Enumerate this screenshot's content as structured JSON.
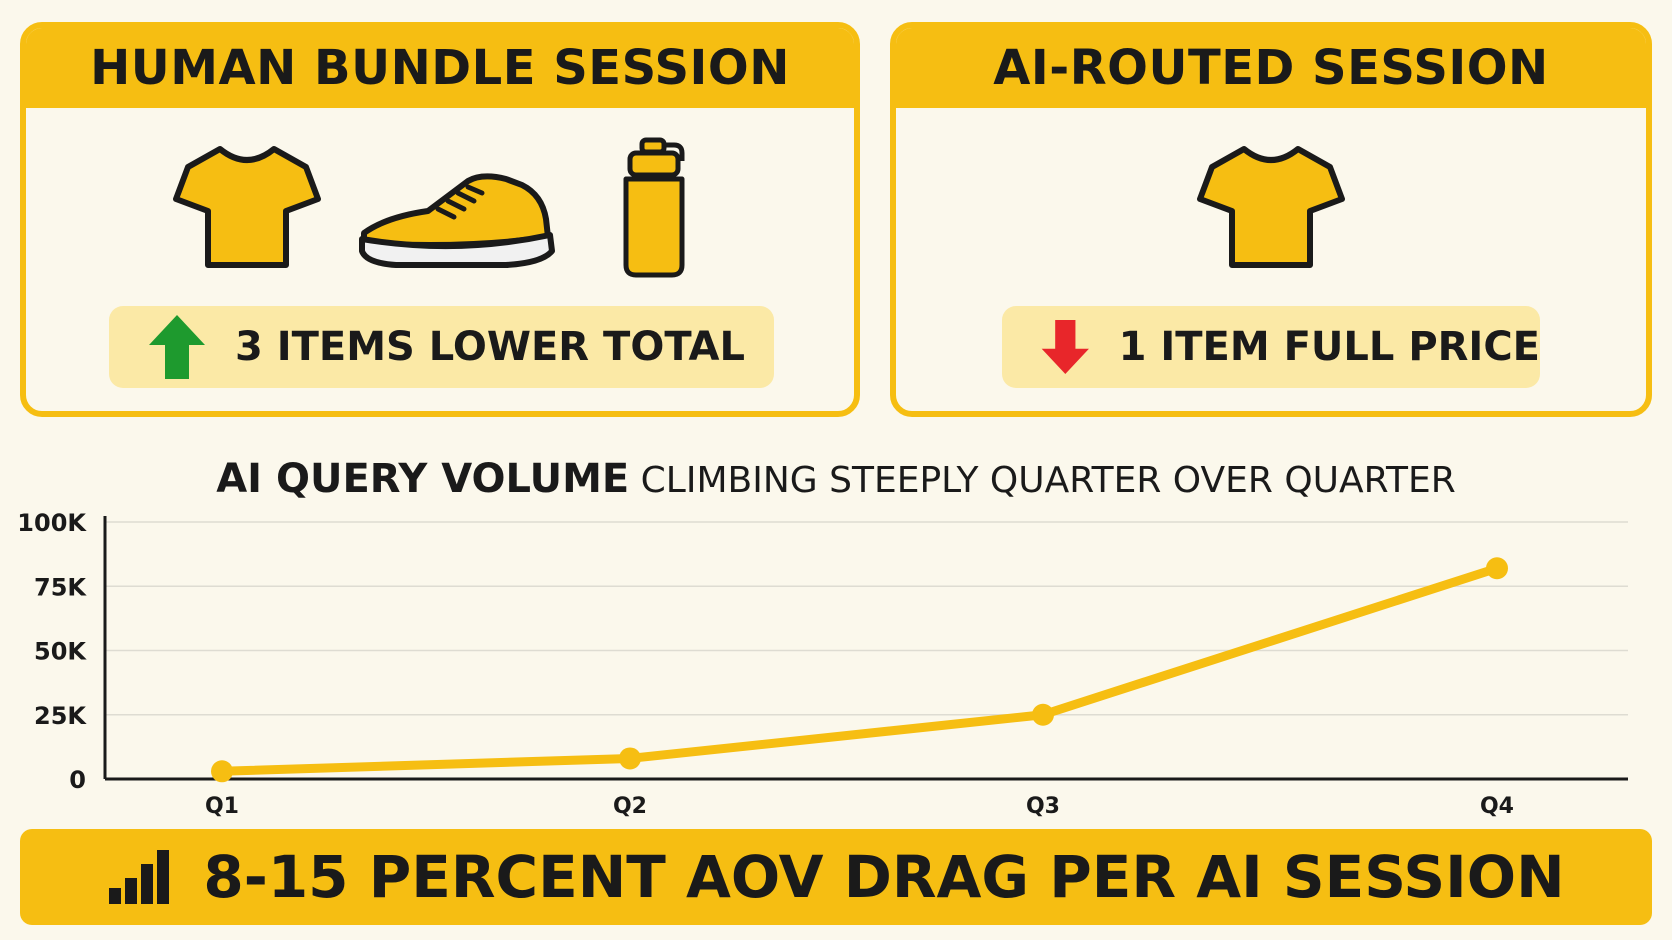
{
  "panels": {
    "left": {
      "title": "HUMAN BUNDLE SESSION",
      "icons": [
        "tshirt-icon",
        "sneaker-icon",
        "water-bottle-icon"
      ],
      "pill_icon": "up-arrow-icon",
      "pill_text": "3 ITEMS LOWER TOTAL"
    },
    "right": {
      "title": "AI-ROUTED SESSION",
      "icons": [
        "tshirt-icon"
      ],
      "pill_icon": "down-arrow-icon",
      "pill_text": "1 ITEM FULL PRICE"
    }
  },
  "chart_data": {
    "type": "line",
    "title_bold": "AI QUERY VOLUME",
    "title_rest": "CLIMBING STEEPLY QUARTER OVER QUARTER",
    "categories": [
      "Q1",
      "Q2",
      "Q3",
      "Q4"
    ],
    "values": [
      3000,
      8000,
      25000,
      82000
    ],
    "y_ticks": [
      0,
      25000,
      50000,
      75000,
      100000
    ],
    "y_tick_labels": [
      "0",
      "25K",
      "50K",
      "75K",
      "100K"
    ],
    "ylim": [
      0,
      100000
    ],
    "grid": true,
    "line_color": "#f6be12"
  },
  "banner": {
    "icon": "bar-chart-icon",
    "text": "8-15 PERCENT AOV DRAG PER AI SESSION"
  },
  "colors": {
    "accent": "#f6be12",
    "pill_bg": "#fbe9a6",
    "up_arrow": "#1e9a2e",
    "down_arrow": "#e8262a",
    "background": "#fbf8ec"
  }
}
